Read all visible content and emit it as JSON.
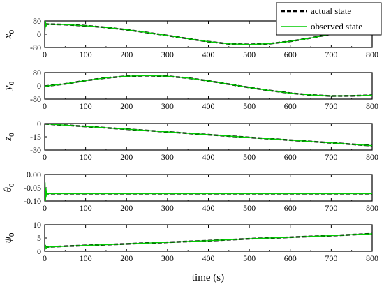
{
  "colors": {
    "actual": "#000000",
    "observed": "#00cc00"
  },
  "legend": {
    "placement": "top-right",
    "actual_label": "actual state",
    "observed_label": "observed state"
  },
  "xlabel": "time (s)",
  "chart_data": [
    {
      "type": "line",
      "panel": "x0",
      "ylabel": {
        "main": "x",
        "sub": "0",
        "italic": true
      },
      "xlim": [
        0,
        800
      ],
      "ylim": [
        -80,
        80
      ],
      "xticks": [
        0,
        100,
        200,
        300,
        400,
        500,
        600,
        700,
        800
      ],
      "xtick_labels": [
        "0",
        "100",
        "200",
        "300",
        "400",
        "500",
        "600",
        "700",
        "800"
      ],
      "yticks": [
        -80,
        0,
        80
      ],
      "ytick_labels": [
        "-80",
        "0",
        "80"
      ],
      "series": [
        {
          "name": "actual state",
          "style": "dashed",
          "x": [
            0,
            50,
            100,
            150,
            200,
            250,
            300,
            350,
            400,
            450,
            500,
            550,
            600,
            650,
            700,
            750
          ],
          "y": [
            61,
            58,
            51,
            41,
            27,
            10,
            -8,
            -27,
            -45,
            -58,
            -62,
            -57,
            -43,
            -23,
            1,
            20
          ]
        },
        {
          "name": "observed state",
          "style": "solid",
          "x": [
            0,
            1,
            2,
            3,
            6,
            10,
            50,
            100,
            150,
            200,
            250,
            300,
            350,
            400,
            450,
            500,
            550,
            600,
            650,
            700,
            750
          ],
          "y": [
            0,
            35,
            80,
            48,
            60,
            61,
            58,
            51,
            41,
            27,
            10,
            -8,
            -27,
            -45,
            -58,
            -62,
            -57,
            -43,
            -23,
            1,
            20
          ]
        }
      ]
    },
    {
      "type": "line",
      "panel": "y0",
      "ylabel": {
        "main": "y",
        "sub": "0",
        "italic": true
      },
      "xlim": [
        0,
        800
      ],
      "ylim": [
        -80,
        80
      ],
      "xticks": [
        0,
        100,
        200,
        300,
        400,
        500,
        600,
        700,
        800
      ],
      "xtick_labels": [
        "0",
        "100",
        "200",
        "300",
        "400",
        "500",
        "600",
        "700",
        "800"
      ],
      "yticks": [
        -80,
        0,
        80
      ],
      "ytick_labels": [
        "-80",
        "0",
        "80"
      ],
      "series": [
        {
          "name": "actual state",
          "style": "dashed",
          "x": [
            0,
            50,
            100,
            150,
            200,
            250,
            300,
            350,
            400,
            450,
            500,
            550,
            600,
            650,
            700,
            750,
            800
          ],
          "y": [
            -2,
            12,
            32,
            48,
            58,
            62,
            58,
            47,
            30,
            10,
            -10,
            -28,
            -44,
            -55,
            -61,
            -60,
            -57
          ]
        },
        {
          "name": "observed state",
          "style": "solid",
          "x": [
            0,
            50,
            100,
            150,
            200,
            250,
            300,
            350,
            400,
            450,
            500,
            550,
            600,
            650,
            700,
            750,
            800
          ],
          "y": [
            -2,
            12,
            32,
            48,
            58,
            62,
            58,
            47,
            30,
            10,
            -10,
            -28,
            -44,
            -55,
            -61,
            -60,
            -57
          ]
        }
      ]
    },
    {
      "type": "line",
      "panel": "z0",
      "ylabel": {
        "main": "z",
        "sub": "0",
        "italic": true
      },
      "xlim": [
        0,
        800
      ],
      "ylim": [
        -30,
        0
      ],
      "xticks": [
        0,
        100,
        200,
        300,
        400,
        500,
        600,
        700,
        800
      ],
      "xtick_labels": [
        "0",
        "100",
        "200",
        "300",
        "400",
        "500",
        "600",
        "700",
        "800"
      ],
      "yticks": [
        -30,
        -15,
        0
      ],
      "ytick_labels": [
        "-30",
        "-15",
        "0"
      ],
      "series": [
        {
          "name": "actual state",
          "style": "dashed",
          "x": [
            0,
            100,
            200,
            300,
            400,
            500,
            600,
            700,
            800
          ],
          "y": [
            -0.3,
            -3.3,
            -6.4,
            -9.5,
            -12.6,
            -15.7,
            -18.8,
            -21.9,
            -25
          ]
        },
        {
          "name": "observed state",
          "style": "solid",
          "x": [
            0,
            100,
            200,
            300,
            400,
            500,
            600,
            700,
            800
          ],
          "y": [
            -0.3,
            -3.3,
            -6.4,
            -9.5,
            -12.6,
            -15.7,
            -18.8,
            -21.9,
            -25
          ]
        }
      ]
    },
    {
      "type": "line",
      "panel": "theta0",
      "ylabel": {
        "main": "θ",
        "sub": "0",
        "italic": true
      },
      "xlim": [
        0,
        800
      ],
      "ylim": [
        -0.1,
        0.0
      ],
      "xticks": [
        0,
        100,
        200,
        300,
        400,
        500,
        600,
        700,
        800
      ],
      "xtick_labels": [
        "0",
        "100",
        "200",
        "300",
        "400",
        "500",
        "600",
        "700",
        "800"
      ],
      "yticks": [
        -0.1,
        -0.05,
        0.0
      ],
      "ytick_labels": [
        "-0.10",
        "-0.05",
        "0.00"
      ],
      "series": [
        {
          "name": "actual state",
          "style": "dashed",
          "x": [
            0,
            800
          ],
          "y": [
            -0.072,
            -0.072
          ]
        },
        {
          "name": "observed state",
          "style": "solid",
          "x": [
            0,
            1,
            2,
            3,
            5,
            8,
            800
          ],
          "y": [
            -0.072,
            -0.03,
            -0.1,
            -0.05,
            -0.08,
            -0.072,
            -0.072
          ]
        }
      ]
    },
    {
      "type": "line",
      "panel": "psi0",
      "ylabel": {
        "main": "ψ",
        "sub": "0",
        "italic": false
      },
      "xlim": [
        0,
        800
      ],
      "ylim": [
        0,
        10
      ],
      "xticks": [
        0,
        100,
        200,
        300,
        400,
        500,
        600,
        700,
        800
      ],
      "xtick_labels": [
        "0",
        "100",
        "200",
        "300",
        "400",
        "500",
        "600",
        "700",
        "800"
      ],
      "yticks": [
        0,
        5,
        10
      ],
      "ytick_labels": [
        "0",
        "5",
        "10"
      ],
      "series": [
        {
          "name": "actual state",
          "style": "dashed",
          "x": [
            0,
            100,
            200,
            300,
            400,
            500,
            600,
            700,
            800
          ],
          "y": [
            1.6,
            2.2,
            2.8,
            3.4,
            4.0,
            4.7,
            5.3,
            5.9,
            6.6
          ]
        },
        {
          "name": "observed state",
          "style": "solid",
          "x": [
            0,
            1,
            2,
            4,
            6,
            100,
            200,
            300,
            400,
            500,
            600,
            700,
            800
          ],
          "y": [
            1.6,
            0.6,
            2.4,
            1.2,
            1.6,
            2.2,
            2.8,
            3.4,
            4.0,
            4.7,
            5.3,
            5.9,
            6.6
          ]
        }
      ]
    }
  ]
}
